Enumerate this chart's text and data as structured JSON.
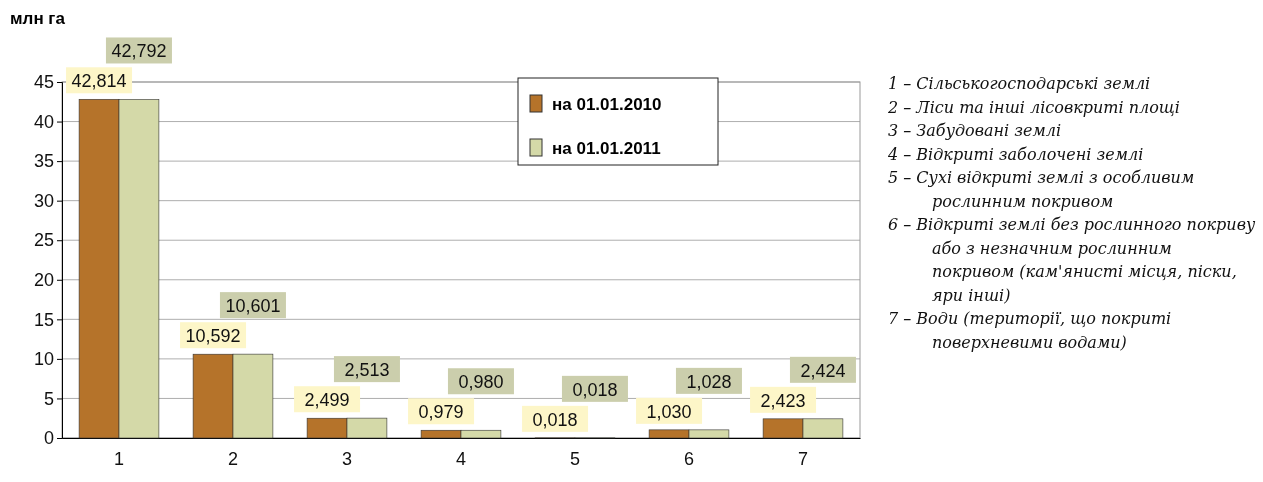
{
  "chart_data": {
    "type": "bar",
    "ylabel": "млн га",
    "categories": [
      "1",
      "2",
      "3",
      "4",
      "5",
      "6",
      "7"
    ],
    "series": [
      {
        "name": "на 01.01.2010",
        "color": "#b5732a",
        "values": [
          42.814,
          10.592,
          2.499,
          0.979,
          0.018,
          1.03,
          2.423
        ],
        "value_labels": [
          "42,814",
          "10,592",
          "2,499",
          "0,979",
          "0,018",
          "1,030",
          "2,423"
        ]
      },
      {
        "name": "на 01.01.2011",
        "color": "#d4d9a8",
        "values": [
          42.792,
          10.601,
          2.513,
          0.98,
          0.018,
          1.028,
          2.424
        ],
        "value_labels": [
          "42,792",
          "10,601",
          "2,513",
          "0,980",
          "0,018",
          "1,028",
          "2,424"
        ]
      }
    ],
    "ylim": [
      0,
      45
    ],
    "yticks": [
      0,
      5,
      10,
      15,
      20,
      25,
      30,
      35,
      40,
      45
    ],
    "grid": "y",
    "legend": "top right",
    "annotations": [
      "1 – Сільськогосподарські землі",
      "2 – Ліси та інші лісовкриті площі",
      "3 – Забудовані землі",
      "4 – Відкриті заболочені землі",
      "5 – Сухі відкриті землі з особливим рослинним покривом",
      "6 – Відкриті землі без рослинного покриву або з незначним рослинним покривом (кам'янисті місця, піски, яри інші)",
      "7 – Води (території, що покриті поверхневими водами)"
    ]
  }
}
